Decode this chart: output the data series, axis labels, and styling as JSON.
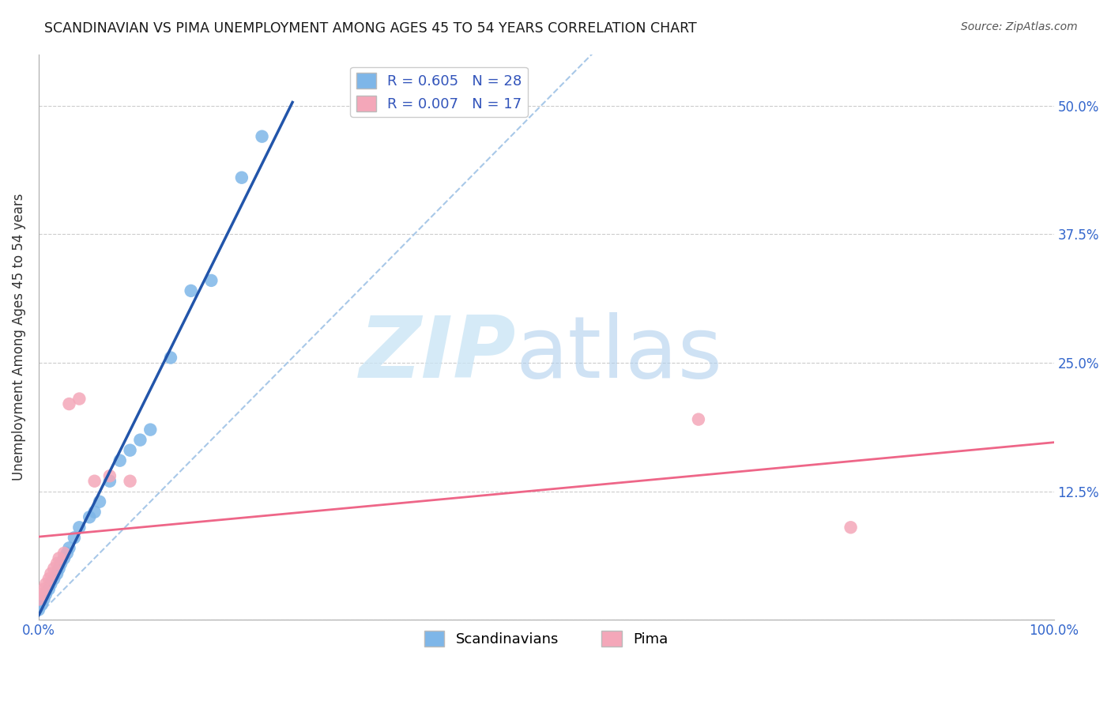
{
  "title": "SCANDINAVIAN VS PIMA UNEMPLOYMENT AMONG AGES 45 TO 54 YEARS CORRELATION CHART",
  "source": "Source: ZipAtlas.com",
  "ylabel": "Unemployment Among Ages 45 to 54 years",
  "xlim": [
    0.0,
    1.0
  ],
  "ylim": [
    0.0,
    0.55
  ],
  "xtick_vals": [
    0.0,
    0.125,
    0.25,
    0.375,
    0.5,
    0.625,
    0.75,
    0.875,
    1.0
  ],
  "ytick_vals": [
    0.0,
    0.125,
    0.25,
    0.375,
    0.5
  ],
  "right_yticklabels": [
    "",
    "12.5%",
    "25.0%",
    "37.5%",
    "50.0%"
  ],
  "xticklabels_show": [
    "0.0%",
    "",
    "",
    "",
    "",
    "",
    "",
    "",
    "100.0%"
  ],
  "legend1_text": "R = 0.605   N = 28",
  "legend2_text": "R = 0.007   N = 17",
  "legend_label1": "Scandinavians",
  "legend_label2": "Pima",
  "blue_scatter": "#7EB6E8",
  "pink_scatter": "#F4A7B9",
  "blue_line": "#2255AA",
  "pink_line": "#EE6688",
  "dash_line": "#A8C8E8",
  "grid_color": "#CCCCCC",
  "title_color": "#1A1A1A",
  "tick_color": "#3366CC",
  "scandinavian_x": [
    0.0,
    0.003,
    0.005,
    0.007,
    0.01,
    0.012,
    0.015,
    0.018,
    0.02,
    0.022,
    0.025,
    0.028,
    0.03,
    0.035,
    0.04,
    0.05,
    0.055,
    0.06,
    0.07,
    0.08,
    0.09,
    0.1,
    0.11,
    0.13,
    0.15,
    0.17,
    0.2,
    0.22
  ],
  "scandinavian_y": [
    0.01,
    0.015,
    0.02,
    0.025,
    0.03,
    0.035,
    0.04,
    0.045,
    0.05,
    0.055,
    0.06,
    0.065,
    0.07,
    0.08,
    0.09,
    0.1,
    0.105,
    0.115,
    0.135,
    0.155,
    0.165,
    0.175,
    0.185,
    0.255,
    0.32,
    0.33,
    0.43,
    0.47
  ],
  "pima_x": [
    0.0,
    0.003,
    0.005,
    0.007,
    0.01,
    0.012,
    0.015,
    0.018,
    0.02,
    0.025,
    0.03,
    0.04,
    0.055,
    0.07,
    0.09,
    0.65,
    0.8
  ],
  "pima_y": [
    0.02,
    0.025,
    0.03,
    0.035,
    0.04,
    0.045,
    0.05,
    0.055,
    0.06,
    0.065,
    0.21,
    0.215,
    0.135,
    0.14,
    0.135,
    0.195,
    0.09
  ]
}
